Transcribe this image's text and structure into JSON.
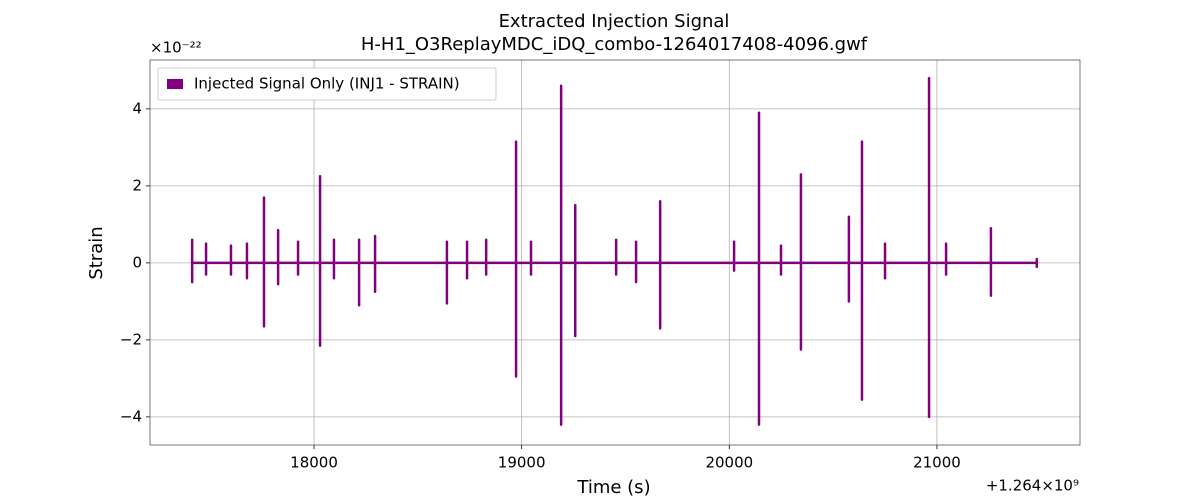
{
  "chart_data": {
    "type": "line",
    "title": "Extracted Injection Signal",
    "subtitle": "H-H1_O3ReplayMDC_iDQ_combo-1264017408-4096.gwf",
    "x_label": "Time (s)",
    "y_label": "Strain",
    "x_offset_label": "+1.264×10⁹",
    "y_scale_label": "×10⁻²²",
    "xlim": [
      17210,
      21689
    ],
    "ylim": [
      -4.73,
      5.27
    ],
    "xticks": [
      18000,
      19000,
      20000,
      21000
    ],
    "yticks": [
      {
        "value": -4,
        "label": "−4"
      },
      {
        "value": -2,
        "label": "−2"
      },
      0,
      2,
      4
    ],
    "grid": true,
    "legend": "upper left",
    "x": [
      17413,
      17413,
      17413,
      17413,
      17480,
      17480,
      17480,
      17480,
      17600,
      17600,
      17600,
      17600,
      17677,
      17677,
      17677,
      17677,
      17759,
      17759,
      17759,
      17759,
      17827,
      17827,
      17827,
      17827,
      17923,
      17923,
      17923,
      17923,
      18029,
      18029,
      18029,
      18029,
      18096,
      18096,
      18096,
      18096,
      18217,
      18217,
      18217,
      18217,
      18294,
      18294,
      18294,
      18294,
      18640,
      18640,
      18640,
      18640,
      18737,
      18737,
      18737,
      18737,
      18829,
      18829,
      18829,
      18829,
      18973,
      18973,
      18973,
      18973,
      19045,
      19045,
      19045,
      19045,
      19190,
      19190,
      19190,
      19190,
      19258,
      19258,
      19258,
      19258,
      19455,
      19455,
      19455,
      19455,
      19551,
      19551,
      19551,
      19551,
      19667,
      19667,
      19667,
      19667,
      20023,
      20023,
      20023,
      20023,
      20143,
      20143,
      20143,
      20143,
      20249,
      20249,
      20249,
      20249,
      20345,
      20345,
      20345,
      20345,
      20576,
      20576,
      20576,
      20576,
      20639,
      20639,
      20639,
      20639,
      20750,
      20750,
      20750,
      20750,
      20962,
      20962,
      20962,
      20962,
      21044,
      21044,
      21044,
      21044,
      21260,
      21260,
      21260,
      21260,
      21481,
      21481,
      21481,
      21481
    ],
    "series": [
      {
        "name": "Injected Signal Only (INJ1 - STRAIN)",
        "color": "#800080",
        "values": [
          0,
          0.6,
          -0.5,
          0,
          0,
          0.5,
          -0.3,
          0,
          0,
          0.45,
          -0.3,
          0,
          0,
          0.5,
          -0.4,
          0,
          0,
          1.7,
          -1.65,
          0,
          0,
          0.85,
          -0.55,
          0,
          0,
          0.55,
          -0.3,
          0,
          0,
          2.25,
          -2.15,
          0,
          0,
          0.6,
          -0.4,
          0,
          0,
          0.6,
          -1.1,
          0,
          0,
          0.7,
          -0.75,
          0,
          0,
          0.55,
          -1.05,
          0,
          0,
          0.55,
          -0.4,
          0,
          0,
          0.6,
          -0.3,
          0,
          0,
          3.15,
          -2.95,
          0,
          0,
          0.55,
          -0.3,
          0,
          0,
          4.6,
          -4.2,
          0,
          0,
          1.5,
          -1.9,
          0,
          0,
          0.6,
          -0.3,
          0,
          0,
          0.55,
          -0.5,
          0,
          0,
          1.6,
          -1.7,
          0,
          0,
          0.55,
          -0.2,
          0,
          0,
          3.9,
          -4.2,
          0,
          0,
          0.45,
          -0.3,
          0,
          0,
          2.3,
          -2.25,
          0,
          0,
          1.2,
          -1.0,
          0,
          0,
          3.15,
          -3.55,
          0,
          0,
          0.5,
          -0.4,
          0,
          0,
          4.8,
          -4.0,
          0,
          0,
          0.5,
          -0.3,
          0,
          0,
          0.9,
          -0.85,
          0,
          0,
          0.1,
          -0.1,
          0
        ]
      }
    ]
  }
}
